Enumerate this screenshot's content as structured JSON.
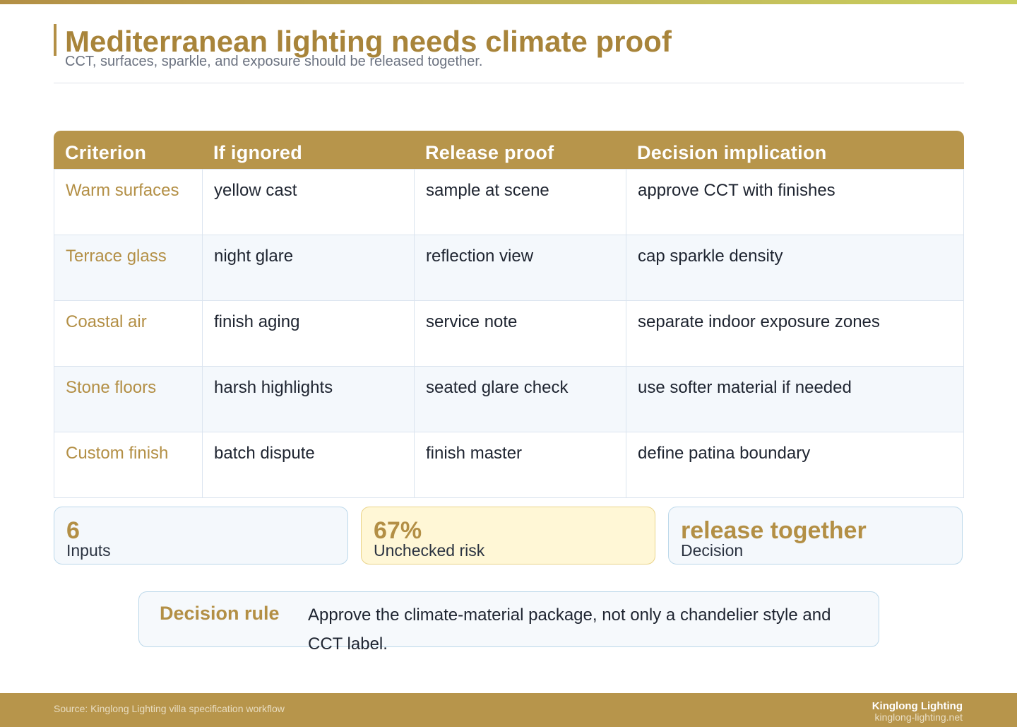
{
  "header": {
    "title": "Mediterranean lighting needs climate proof",
    "subtitle": "CCT, surfaces, sparkle, and exposure should be released together."
  },
  "table": {
    "columns": [
      "Criterion",
      "If ignored",
      "Release proof",
      "Decision implication"
    ],
    "rows": [
      {
        "criterion": "Warm surfaces",
        "if_ignored": "yellow cast",
        "release_proof": "sample at scene",
        "implication": "approve CCT with finishes"
      },
      {
        "criterion": "Terrace glass",
        "if_ignored": "night glare",
        "release_proof": "reflection view",
        "implication": "cap sparkle density"
      },
      {
        "criterion": "Coastal air",
        "if_ignored": "finish aging",
        "release_proof": "service note",
        "implication": "separate indoor exposure zones"
      },
      {
        "criterion": "Stone floors",
        "if_ignored": "harsh highlights",
        "release_proof": "seated glare check",
        "implication": "use softer material if needed"
      },
      {
        "criterion": "Custom finish",
        "if_ignored": "batch dispute",
        "release_proof": "finish master",
        "implication": "define patina boundary"
      }
    ]
  },
  "kpis": [
    {
      "value": "6",
      "label": "Inputs"
    },
    {
      "value": "67%",
      "label": "Unchecked risk"
    },
    {
      "value": "release together",
      "label": "Decision"
    }
  ],
  "decision_rule": {
    "label": "Decision rule",
    "text": "Approve the climate-material package, not only a chandelier style and CCT label."
  },
  "footer": {
    "source": "Source: Kinglong Lighting villa specification workflow",
    "brand": "Kinglong Lighting",
    "url": "kinglong-lighting.net"
  },
  "colors": {
    "accent": "#b38f45",
    "header_bar": "#b7954b",
    "warn_card": "#fff7d6",
    "info_card": "#f4f8fc"
  }
}
